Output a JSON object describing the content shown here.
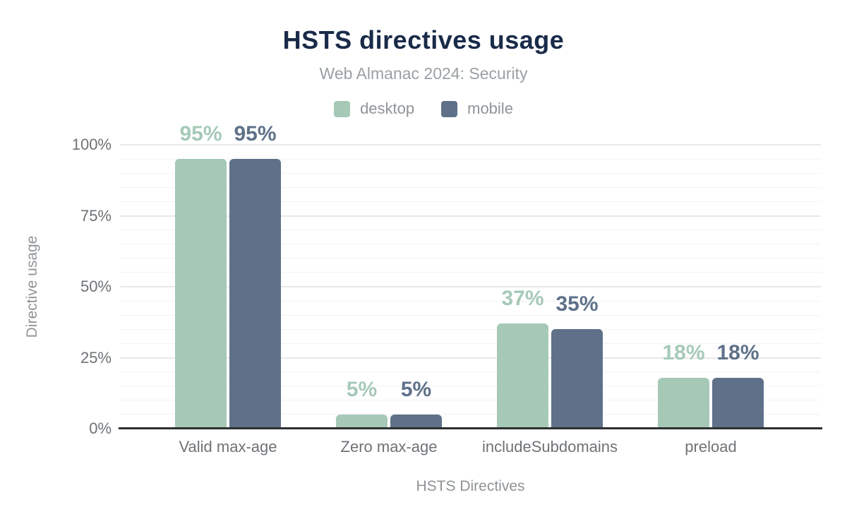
{
  "chart_data": {
    "type": "bar",
    "title": "HSTS directives usage",
    "subtitle": "Web Almanac 2024: Security",
    "xlabel": "HSTS Directives",
    "ylabel": "Directive usage",
    "categories": [
      "Valid max-age",
      "Zero max-age",
      "includeSubdomains",
      "preload"
    ],
    "series": [
      {
        "name": "desktop",
        "color": "#a6c9b7",
        "values": [
          95,
          5,
          37,
          18
        ]
      },
      {
        "name": "mobile",
        "color": "#5f7189",
        "values": [
          95,
          5,
          35,
          18
        ]
      }
    ],
    "value_label_format": "{v}%",
    "ylim": [
      0,
      100
    ],
    "y_ticks": [
      0,
      25,
      50,
      75,
      100
    ],
    "y_tick_format": "{v}%",
    "grid": {
      "show": true,
      "minor_step": 5,
      "major_step": 25
    },
    "legend_position": "top",
    "colors": {
      "title": "#1a2b49",
      "subtitle": "#9aa0a4",
      "axis_title": "#8f9397",
      "tick_label": "#6e7276",
      "legend_label": "#8f9397",
      "axis_line": "#2e2f31",
      "grid_minor": "#f3f3f3",
      "grid_major": "#e8e8e8",
      "background": "#ffffff"
    }
  }
}
